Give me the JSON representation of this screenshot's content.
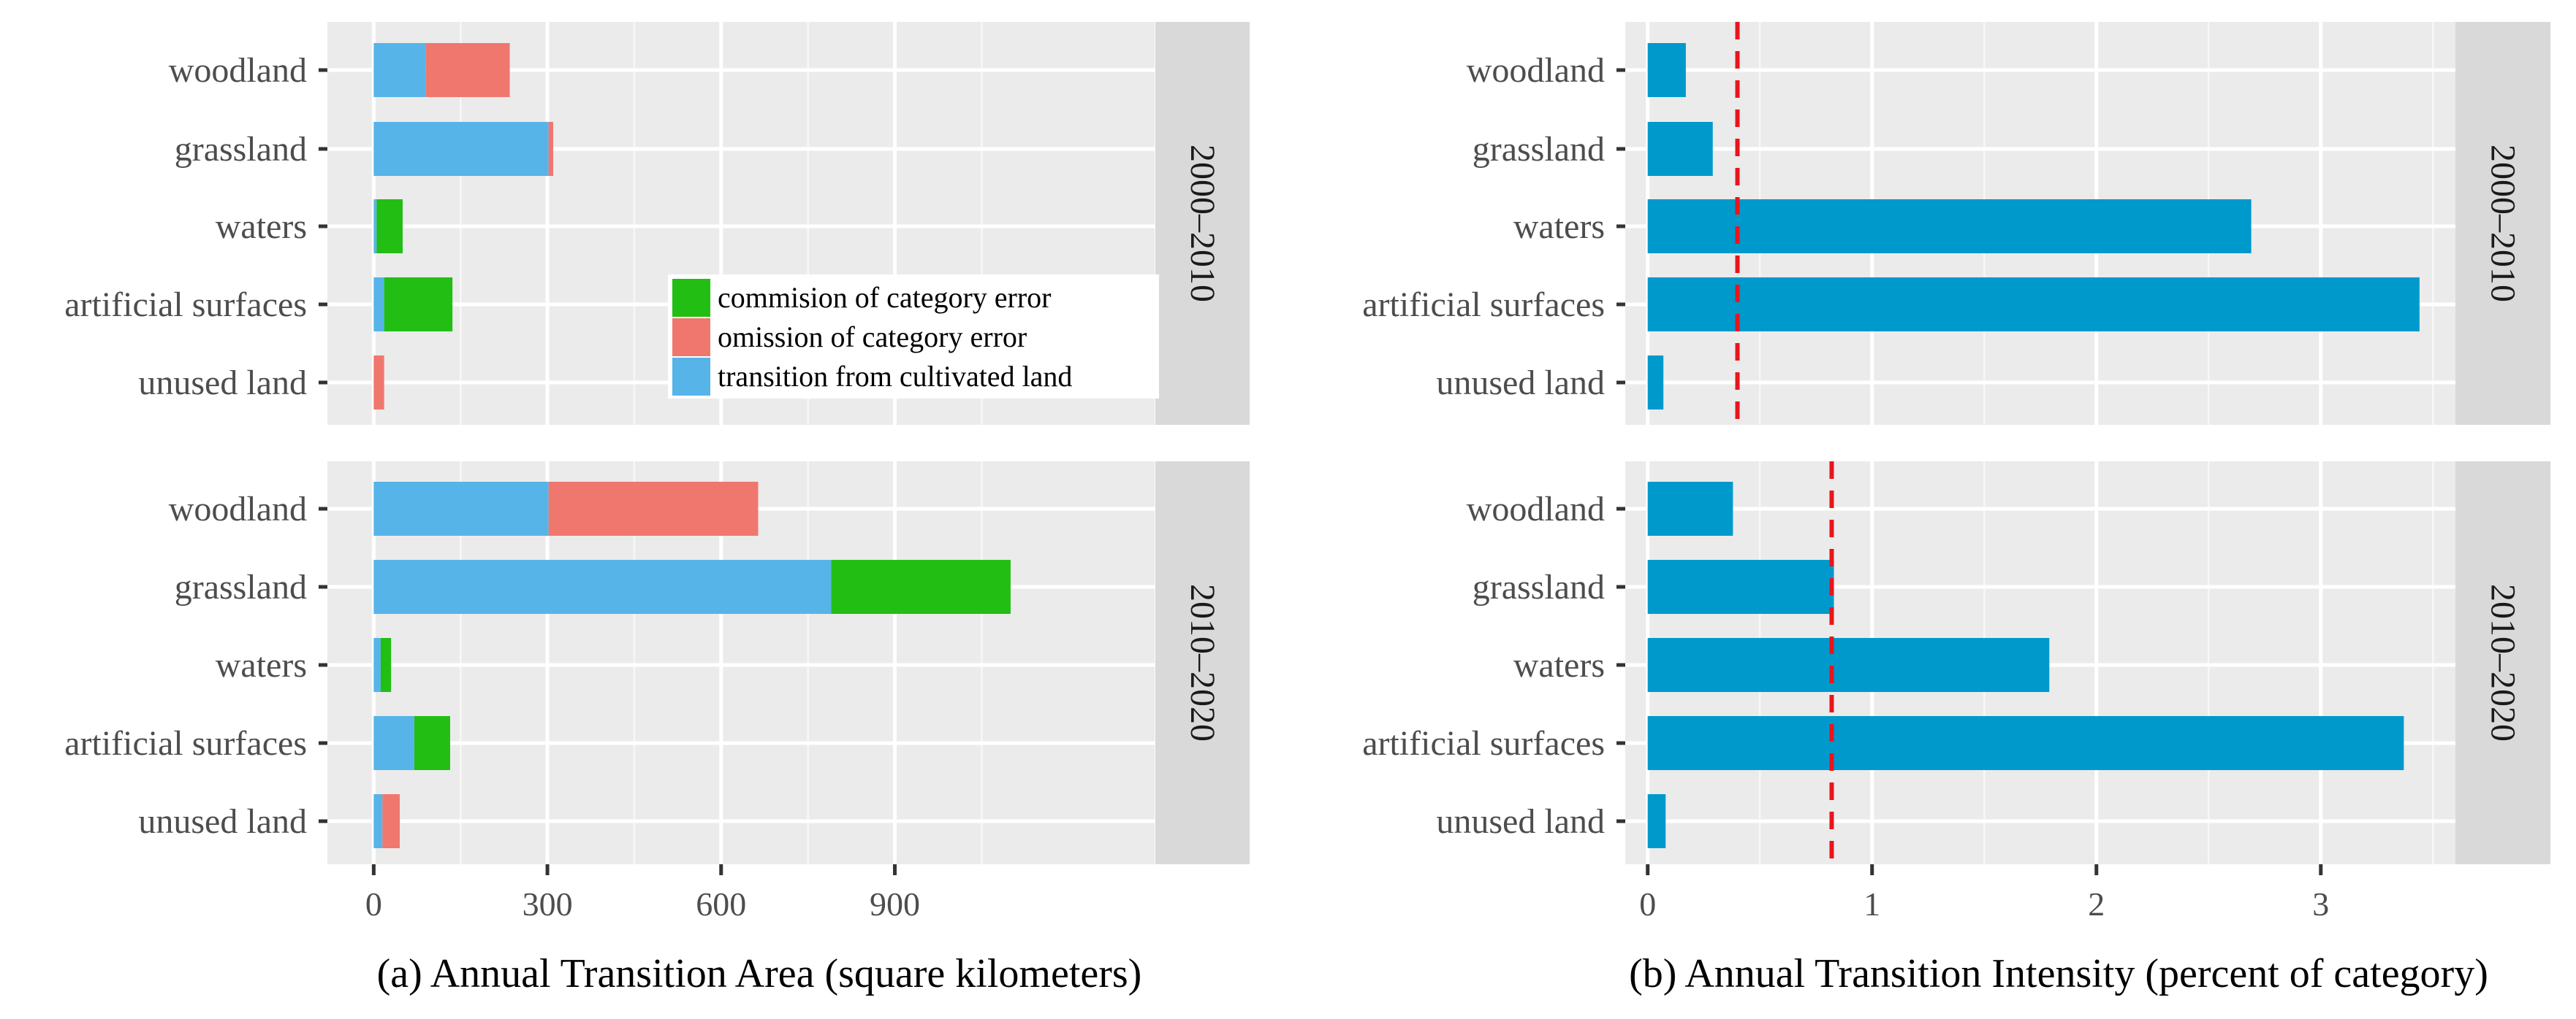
{
  "chart_data": [
    {
      "type": "bar",
      "orientation": "horizontal",
      "stacked": true,
      "xlabel": "(a) Annual Transition Area (square kilometers)",
      "xlim": [
        -80,
        1350
      ],
      "xticks": [
        0,
        300,
        600,
        900
      ],
      "xtick_labels": [
        "0",
        "300",
        "600",
        "900"
      ],
      "categories": [
        "woodland",
        "grassland",
        "waters",
        "artificial surfaces",
        "unused land"
      ],
      "series_names": [
        "transition from cultivated land",
        "commision of category error",
        "omission of category error"
      ],
      "legend": [
        {
          "label": "commision of category error",
          "color": "#22BE14"
        },
        {
          "label": "omission of category error",
          "color": "#F0776E"
        },
        {
          "label": "transition from cultivated land",
          "color": "#56B4E9"
        }
      ],
      "legend_position": "inside bottom-right of top panel",
      "panels": [
        {
          "strip": "2000–2010",
          "series": [
            {
              "name": "transition from cultivated land",
              "color": "#56B4E9",
              "values": [
                90,
                302,
                5,
                18,
                0
              ]
            },
            {
              "name": "commision of category error",
              "color": "#22BE14",
              "values": [
                0,
                0,
                45,
                118,
                0
              ]
            },
            {
              "name": "omission of category error",
              "color": "#F0776E",
              "values": [
                145,
                8,
                0,
                0,
                18
              ]
            }
          ]
        },
        {
          "strip": "2010–2020",
          "series": [
            {
              "name": "transition from cultivated land",
              "color": "#56B4E9",
              "values": [
                302,
                790,
                12,
                70,
                15
              ]
            },
            {
              "name": "commision of category error",
              "color": "#22BE14",
              "values": [
                0,
                310,
                18,
                62,
                0
              ]
            },
            {
              "name": "omission of category error",
              "color": "#F0776E",
              "values": [
                362,
                0,
                0,
                0,
                30
              ]
            }
          ]
        }
      ]
    },
    {
      "type": "bar",
      "orientation": "horizontal",
      "xlabel": "(b) Annual Transition Intensity (percent of category)",
      "xlim": [
        -0.1,
        3.6
      ],
      "xticks": [
        0,
        1,
        2,
        3
      ],
      "xtick_labels": [
        "0",
        "1",
        "2",
        "3"
      ],
      "categories": [
        "woodland",
        "grassland",
        "waters",
        "artificial surfaces",
        "unused land"
      ],
      "bar_color": "#0099CC",
      "reference_line_color": "#E8151B",
      "panels": [
        {
          "strip": "2000–2010",
          "values": [
            0.17,
            0.29,
            2.69,
            3.44,
            0.07
          ],
          "reference_line": 0.4
        },
        {
          "strip": "2010–2020",
          "values": [
            0.38,
            0.83,
            1.79,
            3.37,
            0.08
          ],
          "reference_line": 0.82
        }
      ]
    }
  ]
}
